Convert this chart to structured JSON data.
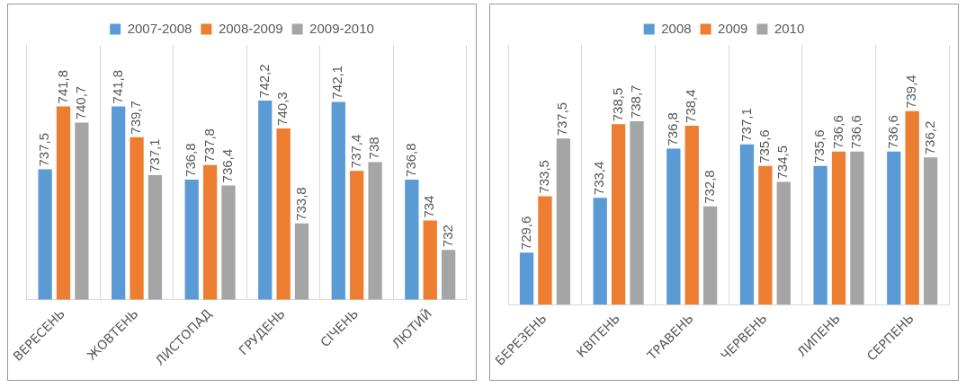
{
  "chart_data": [
    {
      "type": "bar",
      "categories": [
        "ВЕРЕСЕНЬ",
        "ЖОВТЕНЬ",
        "ЛИСТОПАД",
        "ГРУДЕНЬ",
        "СІЧЕНЬ",
        "ЛЮТИЙ"
      ],
      "series": [
        {
          "name": "2007-2008",
          "color": "#5b9bd5",
          "values": [
            737.5,
            741.8,
            736.8,
            742.2,
            742.1,
            736.8
          ],
          "value_labels": [
            "737,5",
            "741,8",
            "736,8",
            "742,2",
            "742,1",
            "736,8"
          ]
        },
        {
          "name": "2008-2009",
          "color": "#ed7d31",
          "values": [
            741.8,
            739.7,
            737.8,
            740.3,
            737.4,
            734
          ],
          "value_labels": [
            "741,8",
            "739,7",
            "737,8",
            "740,3",
            "737,4",
            "734"
          ]
        },
        {
          "name": "2009-2010",
          "color": "#a5a5a5",
          "values": [
            740.7,
            737.1,
            736.4,
            733.8,
            738,
            732
          ],
          "value_labels": [
            "740,7",
            "737,1",
            "736,4",
            "733,8",
            "738",
            "732"
          ]
        }
      ],
      "ylim": [
        728.6,
        746
      ],
      "tick_labels": "x",
      "grid": "x",
      "legend": "top"
    },
    {
      "type": "bar",
      "categories": [
        "БЕРЕЗЕНЬ",
        "КВІТЕНЬ",
        "ТРАВЕНЬ",
        "ЧЕРВЕНЬ",
        "ЛИПЕНЬ",
        "СЕРПЕНЬ"
      ],
      "series": [
        {
          "name": "2008",
          "color": "#5b9bd5",
          "values": [
            729.6,
            733.4,
            736.8,
            737.1,
            735.6,
            736.6
          ],
          "value_labels": [
            "729,6",
            "733,4",
            "736,8",
            "737,1",
            "735,6",
            "736,6"
          ]
        },
        {
          "name": "2009",
          "color": "#ed7d31",
          "values": [
            733.5,
            738.5,
            738.4,
            735.6,
            736.6,
            739.4
          ],
          "value_labels": [
            "733,5",
            "738,5",
            "738,4",
            "735,6",
            "736,6",
            "739,4"
          ]
        },
        {
          "name": "2010",
          "color": "#a5a5a5",
          "values": [
            737.5,
            738.7,
            732.8,
            734.5,
            736.6,
            736.2
          ],
          "value_labels": [
            "737,5",
            "738,7",
            "732,8",
            "734,5",
            "736,6",
            "736,2"
          ]
        }
      ],
      "ylim": [
        726,
        744
      ],
      "tick_labels": "x",
      "grid": "x",
      "legend": "top"
    }
  ]
}
